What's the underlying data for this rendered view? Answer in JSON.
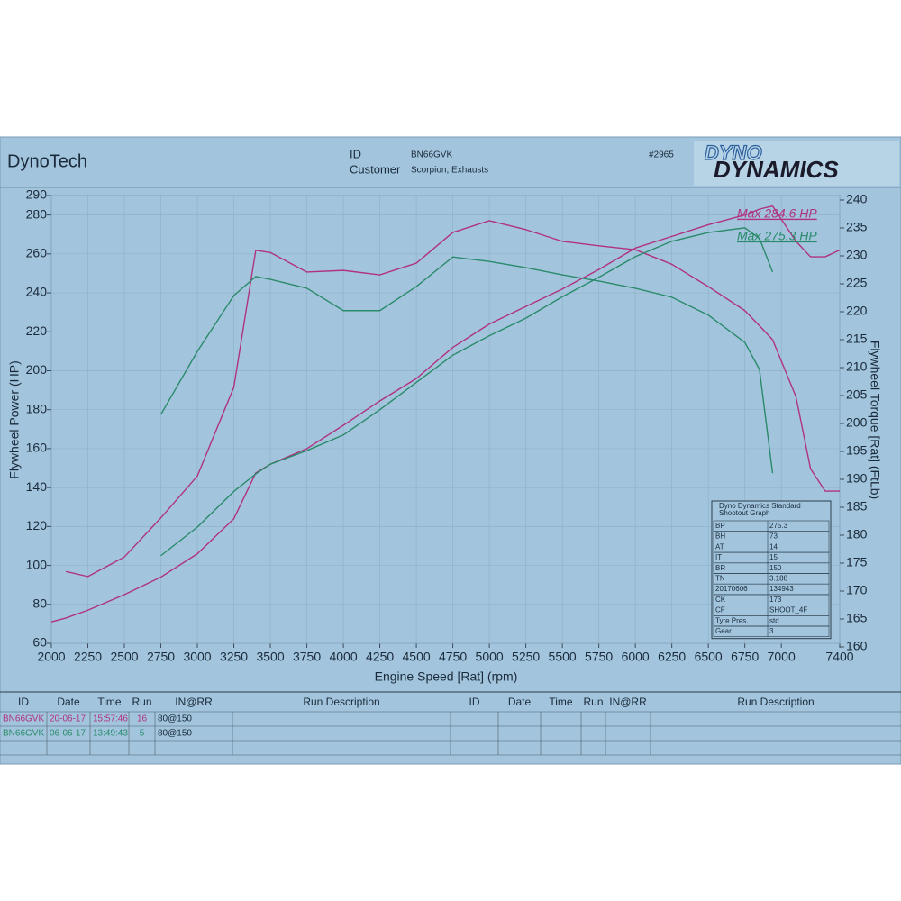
{
  "header": {
    "title": "DynoTech",
    "id_label": "ID",
    "id": "BN66GVK",
    "customer_label": "Customer",
    "customer": "Scorpion, Exhausts",
    "sheet_no": "#2965",
    "logo_top": "DYNO",
    "logo_bottom": "DYNAMICS"
  },
  "chart_data": {
    "type": "line",
    "x_label": "Engine Speed [Rat] (rpm)",
    "y_label": "Flywheel Power (HP)",
    "y2_label": "Flywheel Torque [Rat] (FtLb)",
    "x": [
      2000,
      2100,
      2250,
      2500,
      2750,
      3000,
      3250,
      3400,
      3500,
      3750,
      4000,
      4250,
      4500,
      4750,
      5000,
      5250,
      5500,
      5750,
      6000,
      6250,
      6500,
      6750,
      6850,
      6940,
      7100,
      7200,
      7300,
      7400
    ],
    "series": [
      {
        "color": "#b0327f",
        "axis": "y",
        "values": [
          71,
          73,
          77,
          85,
          94,
          106,
          124,
          147.5,
          152,
          160,
          172,
          184.5,
          196,
          212,
          224,
          233,
          242,
          252,
          263,
          269,
          275,
          280,
          283,
          284.6,
          266.5,
          258.5,
          258.5,
          262
        ]
      },
      {
        "color": "#b0327f",
        "axis": "y2",
        "values": [
          null,
          173.5,
          172.6,
          176.1,
          183.1,
          190.6,
          206.5,
          231,
          230.6,
          227.1,
          227.4,
          226.6,
          228.7,
          234.2,
          236.3,
          234.7,
          232.6,
          231.8,
          231.1,
          228.5,
          224.5,
          220.2,
          217.5,
          215,
          204.8,
          191.9,
          187.9,
          187.9
        ]
      },
      {
        "color": "#2a8a6a",
        "axis": "y",
        "values": [
          null,
          null,
          null,
          null,
          105,
          119.7,
          138,
          147,
          152,
          159,
          167,
          180,
          194,
          208,
          218,
          227,
          238,
          248,
          258.6,
          266.5,
          271,
          273.4,
          268,
          250.7,
          null,
          null,
          null,
          null
        ]
      },
      {
        "color": "#2a8a6a",
        "axis": "y2",
        "values": [
          null,
          null,
          null,
          null,
          201.6,
          212.9,
          222.9,
          226.3,
          225.8,
          224.2,
          220.2,
          220.2,
          224.5,
          229.8,
          229,
          227.9,
          226.6,
          225.5,
          224.2,
          222.6,
          219.4,
          214.5,
          209.7,
          191.1,
          null,
          null,
          null,
          null
        ]
      }
    ],
    "xlim": [
      2000,
      7400
    ],
    "xticks": [
      2000,
      2250,
      2500,
      2750,
      3000,
      3250,
      3500,
      3750,
      4000,
      4250,
      4500,
      4750,
      5000,
      5250,
      5500,
      5750,
      6000,
      6250,
      6500,
      6750,
      7000,
      7400
    ],
    "ylim": [
      60,
      290
    ],
    "yticks": [
      60,
      80,
      100,
      120,
      140,
      160,
      180,
      200,
      220,
      240,
      260,
      280,
      290
    ],
    "y2lim": [
      160,
      240
    ],
    "y2ticks": [
      160,
      165,
      170,
      175,
      180,
      185,
      190,
      195,
      200,
      205,
      210,
      215,
      220,
      225,
      230,
      235,
      240
    ],
    "grid": true,
    "annotations": [
      {
        "text": "Max 284.6 HP",
        "color": "#b0327f"
      },
      {
        "text": "Max 275.3 HP",
        "color": "#2a8a6a"
      }
    ]
  },
  "info_box": {
    "title": "Dyno Dynamics Standard",
    "subtitle": "Shootout Graph",
    "rows": [
      [
        "BP",
        "275.3"
      ],
      [
        "BH",
        "73"
      ],
      [
        "AT",
        "14"
      ],
      [
        "IT",
        "15"
      ],
      [
        "BR",
        "150"
      ],
      [
        "TN",
        "3.188"
      ],
      [
        "20170606",
        "134943"
      ],
      [
        "CK",
        "173"
      ],
      [
        "CF",
        "SHOOT_4F"
      ],
      [
        "Tyre Pres.",
        "std"
      ],
      [
        "Gear",
        "3"
      ]
    ]
  },
  "runs_table": {
    "headers": [
      "ID",
      "Date",
      "Time",
      "Run",
      "IN@RR",
      "Run Description",
      "ID",
      "Date",
      "Time",
      "Run",
      "IN@RR",
      "Run Description"
    ],
    "rows": [
      {
        "color": "#b0327f",
        "cells": [
          "BN66GVK",
          "20-06-17",
          "15:57:46",
          16,
          "80@150"
        ]
      },
      {
        "color": "#2a8a6a",
        "cells": [
          "BN66GVK",
          "06-06-17",
          "13:49:43",
          5,
          "80@150"
        ]
      }
    ]
  }
}
